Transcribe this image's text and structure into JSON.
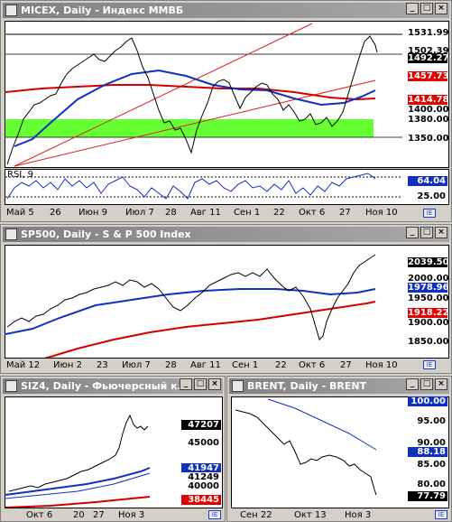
{
  "windows": {
    "micex": {
      "title": "MICEX, Daily - Индекс ММВБ",
      "price_labels": [
        "1531.99",
        "1502.39",
        "1492.27",
        "1457.73",
        "1414.78",
        "1400.00",
        "1380.00",
        "1350.00"
      ],
      "rsi_title": "RSI, 9",
      "rsi_labels": [
        "64.04",
        "25.00"
      ],
      "x_labels": [
        "Май 5",
        "26",
        "Июн 9",
        "Июл 7",
        "28",
        "Авг 11",
        "Сен 1",
        "22",
        "Окт 6",
        "27",
        "Ноя 10"
      ],
      "colors": {
        "band": "#66ff33",
        "ma_red": "#d40000",
        "ma_blue": "#1030c0",
        "trend": "#e02020"
      }
    },
    "sp500": {
      "title": "SP500, Daily - S & P 500 Index",
      "price_labels": [
        "2039.50",
        "2000.00",
        "1978.96",
        "1950.00",
        "1918.22",
        "1900.00",
        "1850.00"
      ],
      "x_labels": [
        "Май 12",
        "Июн 2",
        "23",
        "Июл 7",
        "28",
        "Авг 11",
        "Сен 1",
        "22",
        "Окт 6",
        "27",
        "Ноя 10"
      ]
    },
    "siz4": {
      "title": "SIZ4, Daily - Фьючерсный к...",
      "price_labels": [
        "47207",
        "45000",
        "41947",
        "41249",
        "40000",
        "38445"
      ],
      "x_labels": [
        "Окт 6",
        "20",
        "27",
        "Ноя 3"
      ]
    },
    "brent": {
      "title": "BRENT, Daily - BRENT",
      "price_labels": [
        "100.00",
        "95.00",
        "90.00",
        "88.18",
        "85.00",
        "80.00",
        "77.79"
      ],
      "x_labels": [
        "Сен 22",
        "Окт 13",
        "Ноя 3"
      ]
    }
  },
  "buttons": {
    "minimize": "_",
    "maximize": "□",
    "close": "×"
  },
  "icons": {
    "window": "chart-window-icon",
    "legend": "legend-toggle-icon"
  }
}
